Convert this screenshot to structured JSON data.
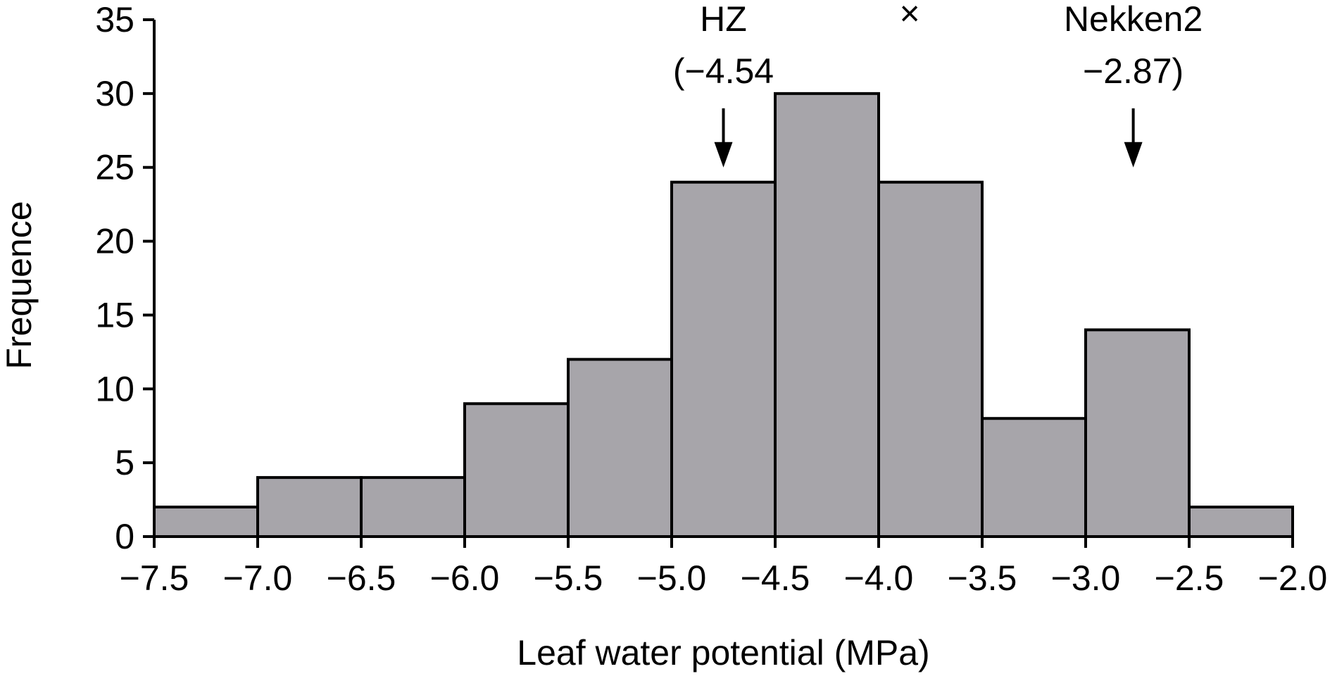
{
  "chart_data": {
    "type": "bar",
    "xlabel": "Leaf water potential (MPa)",
    "ylabel": "Frequence",
    "xlim": [
      -7.5,
      -2.0
    ],
    "ylim": [
      0,
      35
    ],
    "x_ticks": [
      -7.5,
      -7.0,
      -6.5,
      -6.0,
      -5.5,
      -5.0,
      -4.5,
      -4.0,
      -3.5,
      -3.0,
      -2.5,
      -2.0
    ],
    "x_tick_labels": [
      "−7.5",
      "−7.0",
      "−6.5",
      "−6.0",
      "−5.5",
      "−5.0",
      "−4.5",
      "−4.0",
      "−3.5",
      "−3.0",
      "−2.5",
      "−2.0"
    ],
    "y_ticks": [
      0,
      5,
      10,
      15,
      20,
      25,
      30,
      35
    ],
    "y_tick_labels": [
      "0",
      "5",
      "10",
      "15",
      "20",
      "25",
      "30",
      "35"
    ],
    "bins": [
      {
        "start": -7.5,
        "end": -7.0,
        "value": 2
      },
      {
        "start": -7.0,
        "end": -6.5,
        "value": 4
      },
      {
        "start": -6.5,
        "end": -6.0,
        "value": 4
      },
      {
        "start": -6.0,
        "end": -5.5,
        "value": 9
      },
      {
        "start": -5.5,
        "end": -5.0,
        "value": 12
      },
      {
        "start": -5.0,
        "end": -4.5,
        "value": 24
      },
      {
        "start": -4.5,
        "end": -4.0,
        "value": 30
      },
      {
        "start": -4.0,
        "end": -3.5,
        "value": 24
      },
      {
        "start": -3.5,
        "end": -3.0,
        "value": 8
      },
      {
        "start": -3.0,
        "end": -2.5,
        "value": 14
      },
      {
        "start": -2.5,
        "end": -2.0,
        "value": 2
      }
    ],
    "grid": false,
    "annotations": [
      {
        "name": "hz",
        "lines": [
          "HZ",
          "(−4.54"
        ],
        "x": -4.75,
        "arrow_top": 29,
        "arrow_tip": 25
      },
      {
        "name": "cross",
        "lines": [
          "×"
        ],
        "x": -3.85
      },
      {
        "name": "nekken2",
        "lines": [
          "Nekken2",
          "−2.87)"
        ],
        "x": -2.77,
        "arrow_top": 29,
        "arrow_tip": 25
      }
    ]
  }
}
